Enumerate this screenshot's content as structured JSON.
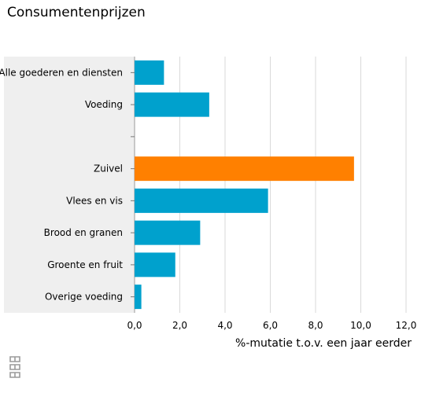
{
  "chart_data": {
    "type": "bar",
    "orientation": "horizontal",
    "title": "Consumentenprijzen",
    "xlabel": "%-mutatie t.o.v. een jaar eerder",
    "ylabel": "",
    "categories": [
      "Alle goederen en diensten",
      "Voeding",
      "",
      "Zuivel",
      "Vlees en vis",
      "Brood en granen",
      "Groente en fruit",
      "Overige voeding"
    ],
    "values": [
      1.3,
      3.3,
      null,
      9.7,
      5.9,
      2.9,
      1.8,
      0.3
    ],
    "colors": [
      "#00a1cd",
      "#00a1cd",
      null,
      "#ff8000",
      "#00a1cd",
      "#00a1cd",
      "#00a1cd",
      "#00a1cd"
    ],
    "xlim": [
      0,
      12
    ],
    "xticks": [
      0,
      2,
      4,
      6,
      8,
      10,
      12
    ],
    "xtick_labels": [
      "0,0",
      "2,0",
      "4,0",
      "6,0",
      "8,0",
      "10,0",
      "12,0"
    ],
    "grid": true,
    "legend": "none"
  },
  "colors": {
    "bar": "#00a1cd",
    "highlight": "#ff8000",
    "label_panel": "#efefef",
    "grid": "#d9d9d9"
  },
  "logo": {
    "name": "cbs-logo"
  }
}
